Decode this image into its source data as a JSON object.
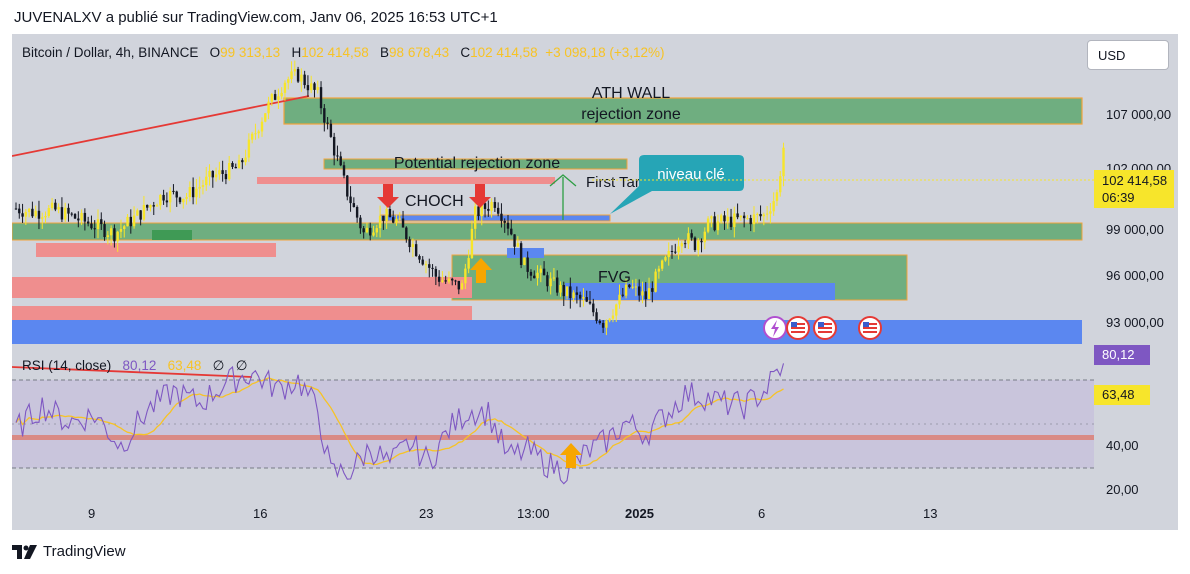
{
  "caption": "JUVENALXV a publié sur TradingView.com, Janv 06, 2025 16:53 UTC+1",
  "symbol": "Bitcoin / Dollar, 4h, BINANCE",
  "ohlc": {
    "o_label": "O",
    "o": "99 313,13",
    "h_label": "H",
    "h": "102 414,58",
    "b_label": "B",
    "b": "98 678,43",
    "c_label": "C",
    "c": "102 414,58",
    "change": "+3 098,18 (+3,12%)"
  },
  "currency": "USD",
  "price_axis": [
    "107 000,00",
    "102 000,00",
    "99 000,00",
    "96 000,00",
    "93 000,00"
  ],
  "current_price": {
    "value": "102 414,58",
    "countdown": "06:39"
  },
  "rsi": {
    "label": "RSI (14, close)",
    "value": "80,12",
    "ma": "63,48",
    "extra1": "∅",
    "extra2": "∅",
    "axis": [
      "40,00",
      "20,00"
    ]
  },
  "time_axis": [
    "9",
    "16",
    "23",
    "13:00",
    "2025",
    "6",
    "13"
  ],
  "annotations": {
    "ath_wall": "ATH WALL",
    "rejection_zone": "rejection zone",
    "potential_rejection": "Potential rejection zone",
    "first_target": "First Target",
    "choch": "CHOCH",
    "fvg": "FVG",
    "niveau_cle": "niveau clé"
  },
  "brand": "TradingView",
  "colors": {
    "up": "#f7e52b",
    "down": "#131722",
    "rsi": "#7e57c2",
    "rsi_ma": "#f7c325",
    "green_zone": "#6fae80",
    "red_zone": "#ef8e8e",
    "blue_zone": "#5b87f0",
    "teal_callout": "#26a5b6"
  },
  "chart_data": {
    "type": "candlestick",
    "title": "Bitcoin / Dollar, 4h, BINANCE",
    "x_ticks": [
      "9",
      "16",
      "23",
      "13:00",
      "2025",
      "6",
      "13"
    ],
    "y_range": [
      91500,
      108800
    ],
    "close_anchors": [
      [
        0,
        99000
      ],
      [
        5,
        98800
      ],
      [
        12,
        98900
      ],
      [
        22,
        98200
      ],
      [
        30,
        97600
      ],
      [
        37,
        98600
      ],
      [
        45,
        99800
      ],
      [
        52,
        99700
      ],
      [
        60,
        100800
      ],
      [
        68,
        101300
      ],
      [
        76,
        104500
      ],
      [
        82,
        106200
      ],
      [
        86,
        106500
      ],
      [
        92,
        105400
      ],
      [
        97,
        102300
      ],
      [
        101,
        99900
      ],
      [
        106,
        97600
      ],
      [
        112,
        98600
      ],
      [
        116,
        98300
      ],
      [
        122,
        96700
      ],
      [
        128,
        95200
      ],
      [
        132,
        94800
      ],
      [
        136,
        94600
      ],
      [
        140,
        98700
      ],
      [
        146,
        99400
      ],
      [
        150,
        98100
      ],
      [
        155,
        95800
      ],
      [
        161,
        95100
      ],
      [
        167,
        94300
      ],
      [
        173,
        93800
      ],
      [
        179,
        92600
      ],
      [
        183,
        93600
      ],
      [
        187,
        94600
      ],
      [
        192,
        94000
      ],
      [
        197,
        95700
      ],
      [
        203,
        97500
      ],
      [
        207,
        97000
      ],
      [
        211,
        98100
      ],
      [
        217,
        98300
      ],
      [
        223,
        98400
      ],
      [
        228,
        98600
      ],
      [
        232,
        99800
      ],
      [
        234,
        102414
      ]
    ],
    "rsi_range": [
      20,
      85
    ],
    "rsi_levels": [
      70,
      30
    ],
    "rsi_anchors": [
      [
        0,
        52
      ],
      [
        8,
        62
      ],
      [
        16,
        55
      ],
      [
        24,
        58
      ],
      [
        32,
        45
      ],
      [
        40,
        60
      ],
      [
        48,
        68
      ],
      [
        56,
        63
      ],
      [
        64,
        72
      ],
      [
        72,
        76
      ],
      [
        80,
        69
      ],
      [
        86,
        73
      ],
      [
        92,
        60
      ],
      [
        96,
        33
      ],
      [
        102,
        34
      ],
      [
        108,
        44
      ],
      [
        114,
        37
      ],
      [
        120,
        46
      ],
      [
        126,
        38
      ],
      [
        132,
        52
      ],
      [
        138,
        60
      ],
      [
        144,
        59
      ],
      [
        150,
        40
      ],
      [
        156,
        43
      ],
      [
        162,
        37
      ],
      [
        168,
        34
      ],
      [
        174,
        42
      ],
      [
        180,
        47
      ],
      [
        186,
        55
      ],
      [
        192,
        50
      ],
      [
        198,
        58
      ],
      [
        204,
        67
      ],
      [
        210,
        66
      ],
      [
        216,
        63
      ],
      [
        222,
        62
      ],
      [
        228,
        68
      ],
      [
        234,
        80.12
      ]
    ]
  }
}
